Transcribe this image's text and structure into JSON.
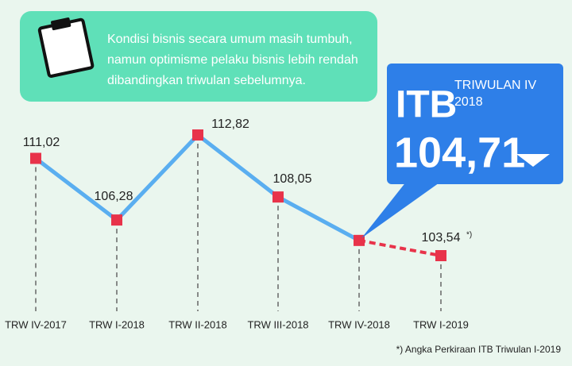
{
  "chart_data": {
    "type": "line",
    "note_lines": [
      "Kondisi bisnis secara umum masih tumbuh,",
      "namun optimisme pelaku bisnis lebih rendah",
      "dibandingkan triwulan sebelumnya."
    ],
    "callout": {
      "title": "ITB",
      "subtitle": [
        "TRIWULAN IV",
        "2018"
      ],
      "point": 4
    },
    "categories": [
      "TRW IV-2017",
      "TRW I-2018",
      "TRW II-2018",
      "TRW III-2018",
      "TRW IV-2018",
      "TRW I-2019"
    ],
    "series": [
      {
        "color": "#5aaef0",
        "values": [
          111.02,
          106.28,
          112.82,
          108.05,
          104.71,
          103.54
        ],
        "value_labels": [
          "111,02",
          "106,28",
          "112,82",
          "108,05",
          "104,71",
          "103,54"
        ],
        "estimated": [
          false,
          false,
          false,
          false,
          false,
          true
        ]
      }
    ],
    "estimate_marker": "*)",
    "marker_color": "#e8334a",
    "footnote": "*) Angka Perkiraan ITB Triwulan I-2019"
  }
}
